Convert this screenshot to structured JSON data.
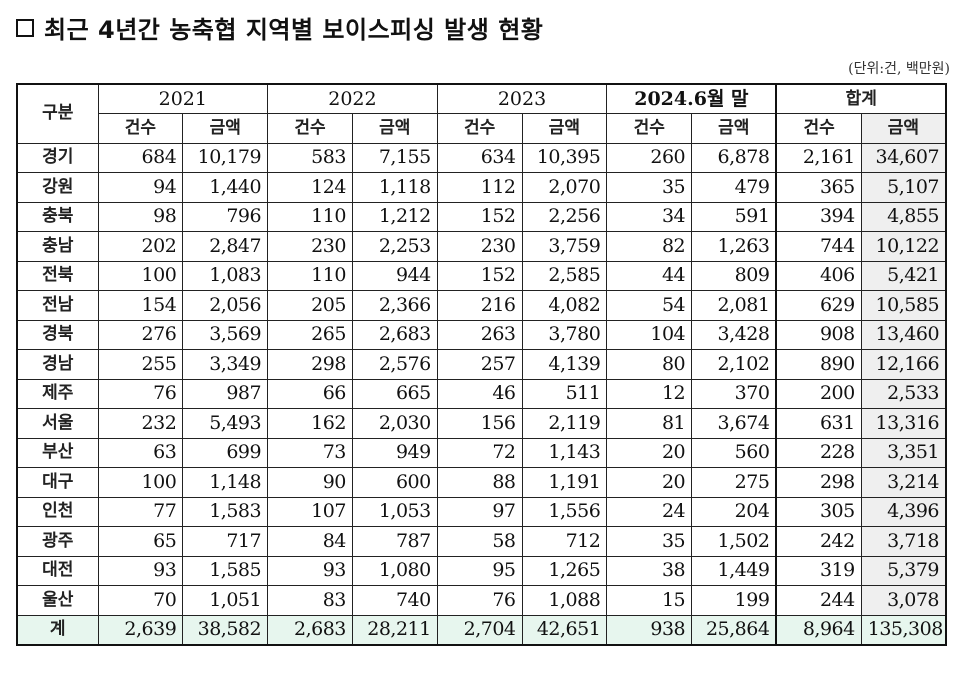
{
  "title": {
    "bullet_icon": "empty-square",
    "text": "최근 4년간 농축협 지역별 보이스피싱 발생 현황"
  },
  "unit_note": "(단위:건, 백만원)",
  "table": {
    "header": {
      "region_label": "구분",
      "groups": [
        "2021",
        "2022",
        "2023",
        "2024.6월 말",
        "합계"
      ],
      "sub_labels": {
        "count": "건수",
        "amount": "금액"
      }
    },
    "rows": [
      {
        "region": "경기",
        "values": [
          "684",
          "10,179",
          "583",
          "7,155",
          "634",
          "10,395",
          "260",
          "6,878",
          "2,161",
          "34,607"
        ]
      },
      {
        "region": "강원",
        "values": [
          "94",
          "1,440",
          "124",
          "1,118",
          "112",
          "2,070",
          "35",
          "479",
          "365",
          "5,107"
        ]
      },
      {
        "region": "충북",
        "values": [
          "98",
          "796",
          "110",
          "1,212",
          "152",
          "2,256",
          "34",
          "591",
          "394",
          "4,855"
        ]
      },
      {
        "region": "충남",
        "values": [
          "202",
          "2,847",
          "230",
          "2,253",
          "230",
          "3,759",
          "82",
          "1,263",
          "744",
          "10,122"
        ]
      },
      {
        "region": "전북",
        "values": [
          "100",
          "1,083",
          "110",
          "944",
          "152",
          "2,585",
          "44",
          "809",
          "406",
          "5,421"
        ]
      },
      {
        "region": "전남",
        "values": [
          "154",
          "2,056",
          "205",
          "2,366",
          "216",
          "4,082",
          "54",
          "2,081",
          "629",
          "10,585"
        ]
      },
      {
        "region": "경북",
        "values": [
          "276",
          "3,569",
          "265",
          "2,683",
          "263",
          "3,780",
          "104",
          "3,428",
          "908",
          "13,460"
        ]
      },
      {
        "region": "경남",
        "values": [
          "255",
          "3,349",
          "298",
          "2,576",
          "257",
          "4,139",
          "80",
          "2,102",
          "890",
          "12,166"
        ]
      },
      {
        "region": "제주",
        "values": [
          "76",
          "987",
          "66",
          "665",
          "46",
          "511",
          "12",
          "370",
          "200",
          "2,533"
        ]
      },
      {
        "region": "서울",
        "values": [
          "232",
          "5,493",
          "162",
          "2,030",
          "156",
          "2,119",
          "81",
          "3,674",
          "631",
          "13,316"
        ]
      },
      {
        "region": "부산",
        "values": [
          "63",
          "699",
          "73",
          "949",
          "72",
          "1,143",
          "20",
          "560",
          "228",
          "3,351"
        ]
      },
      {
        "region": "대구",
        "values": [
          "100",
          "1,148",
          "90",
          "600",
          "88",
          "1,191",
          "20",
          "275",
          "298",
          "3,214"
        ]
      },
      {
        "region": "인천",
        "values": [
          "77",
          "1,583",
          "107",
          "1,053",
          "97",
          "1,556",
          "24",
          "204",
          "305",
          "4,396"
        ]
      },
      {
        "region": "광주",
        "values": [
          "65",
          "717",
          "84",
          "787",
          "58",
          "712",
          "35",
          "1,502",
          "242",
          "3,718"
        ]
      },
      {
        "region": "대전",
        "values": [
          "93",
          "1,585",
          "93",
          "1,080",
          "95",
          "1,265",
          "38",
          "1,449",
          "319",
          "5,379"
        ]
      },
      {
        "region": "울산",
        "values": [
          "70",
          "1,051",
          "83",
          "740",
          "76",
          "1,088",
          "15",
          "199",
          "244",
          "3,078"
        ]
      }
    ],
    "total": {
      "region": "계",
      "values": [
        "2,639",
        "38,582",
        "2,683",
        "28,211",
        "2,704",
        "42,651",
        "938",
        "25,864",
        "8,964",
        "135,308"
      ]
    }
  },
  "colors": {
    "total_row_bg": "#e7f6ee",
    "sum_amount_col_bg": "#efefef",
    "border": "#111111"
  }
}
